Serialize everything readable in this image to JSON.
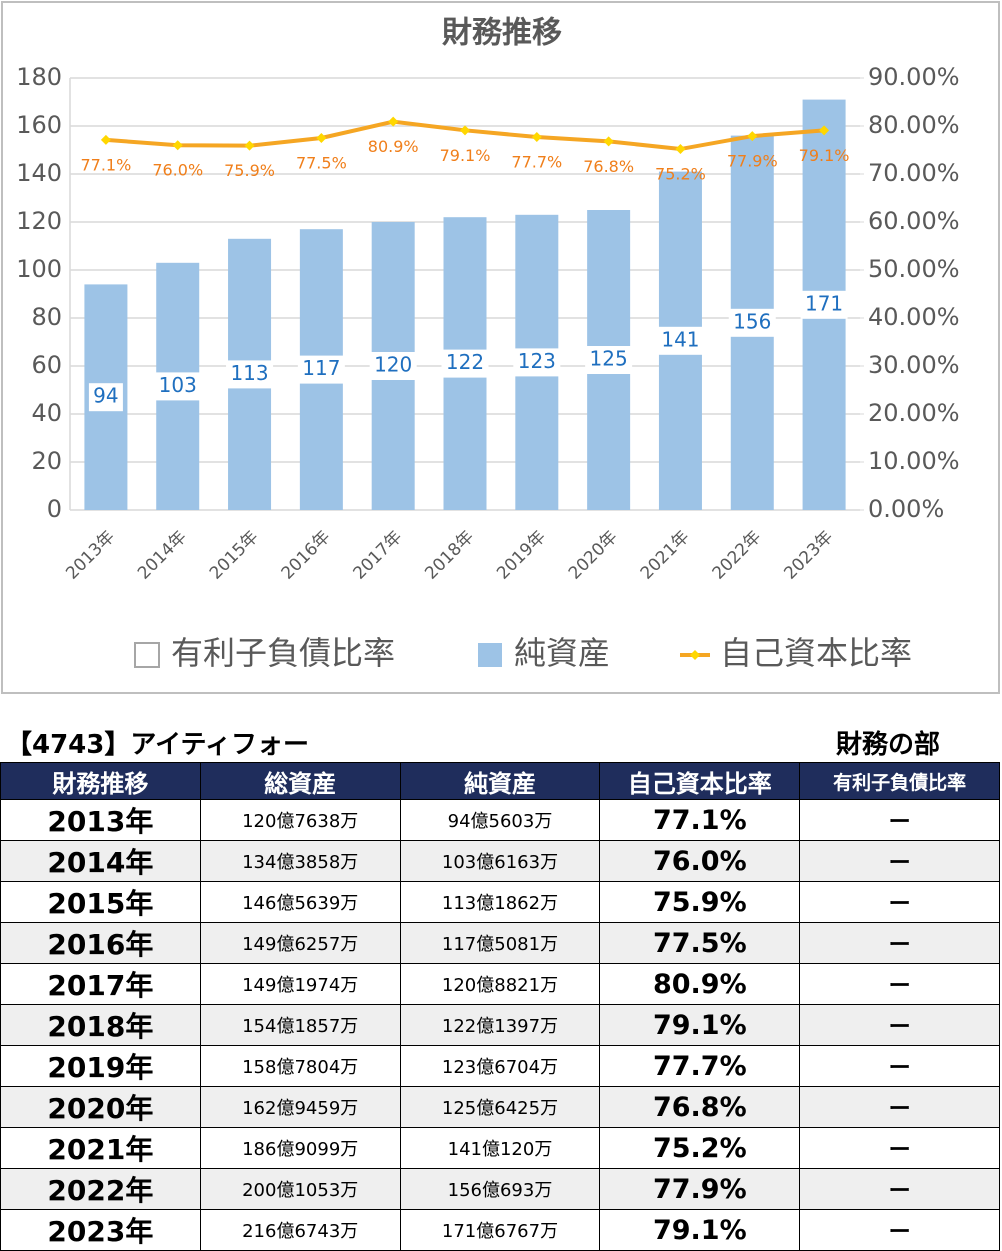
{
  "chart_data": {
    "type": "bar",
    "title": "財務推移",
    "categories": [
      "2013年",
      "2014年",
      "2015年",
      "2016年",
      "2017年",
      "2018年",
      "2019年",
      "2020年",
      "2021年",
      "2022年",
      "2023年"
    ],
    "series": [
      {
        "name": "有利子負債比率",
        "color": "#ffffff",
        "values": [
          null,
          null,
          null,
          null,
          null,
          null,
          null,
          null,
          null,
          null,
          null
        ]
      },
      {
        "name": "純資産",
        "color": "#9dc3e6",
        "values": [
          94,
          103,
          113,
          117,
          120,
          122,
          123,
          125,
          141,
          156,
          171
        ]
      },
      {
        "name": "自己資本比率",
        "color": "#f5a623",
        "axis": "y2",
        "values": [
          77.1,
          76.0,
          75.9,
          77.5,
          80.9,
          79.1,
          77.7,
          76.8,
          75.2,
          77.9,
          79.1
        ],
        "value_labels": [
          "77.1%",
          "76.0%",
          "75.9%",
          "77.5%",
          "80.9%",
          "79.1%",
          "77.7%",
          "76.8%",
          "75.2%",
          "77.9%",
          "79.1%"
        ]
      }
    ],
    "ylim": [
      0,
      180
    ],
    "yticks": [
      0,
      20,
      40,
      60,
      80,
      100,
      120,
      140,
      160,
      180
    ],
    "y2lim": [
      0,
      90
    ],
    "y2ticks": [
      {
        "value": 0,
        "label": "0.00%"
      },
      {
        "value": 10,
        "label": "10.00%"
      },
      {
        "value": 20,
        "label": "20.00%"
      },
      {
        "value": 30,
        "label": "30.00%"
      },
      {
        "value": 40,
        "label": "40.00%"
      },
      {
        "value": 50,
        "label": "50.00%"
      },
      {
        "value": 60,
        "label": "60.00%"
      },
      {
        "value": 70,
        "label": "70.00%"
      },
      {
        "value": 80,
        "label": "80.00%"
      },
      {
        "value": 90,
        "label": "90.00%"
      }
    ],
    "legend": "bottom"
  },
  "table": {
    "title": "【4743】アイティフォー",
    "caption": "財務の部",
    "header": [
      "財務推移",
      "総資産",
      "純資産",
      "自己資本比率",
      "有利子負債比率"
    ],
    "rows": [
      [
        "2013年",
        "120億7638万",
        "94億5603万",
        "77.1%",
        "ー"
      ],
      [
        "2014年",
        "134億3858万",
        "103億6163万",
        "76.0%",
        "ー"
      ],
      [
        "2015年",
        "146億5639万",
        "113億1862万",
        "75.9%",
        "ー"
      ],
      [
        "2016年",
        "149億6257万",
        "117億5081万",
        "77.5%",
        "ー"
      ],
      [
        "2017年",
        "149億1974万",
        "120億8821万",
        "80.9%",
        "ー"
      ],
      [
        "2018年",
        "154億1857万",
        "122億1397万",
        "79.1%",
        "ー"
      ],
      [
        "2019年",
        "158億7804万",
        "123億6704万",
        "77.7%",
        "ー"
      ],
      [
        "2020年",
        "162億9459万",
        "125億6425万",
        "76.8%",
        "ー"
      ],
      [
        "2021年",
        "186億9099万",
        "141億120万",
        "75.2%",
        "ー"
      ],
      [
        "2022年",
        "200億1053万",
        "156億693万",
        "77.9%",
        "ー"
      ],
      [
        "2023年",
        "216億6743万",
        "171億6767万",
        "79.1%",
        "ー"
      ]
    ]
  }
}
